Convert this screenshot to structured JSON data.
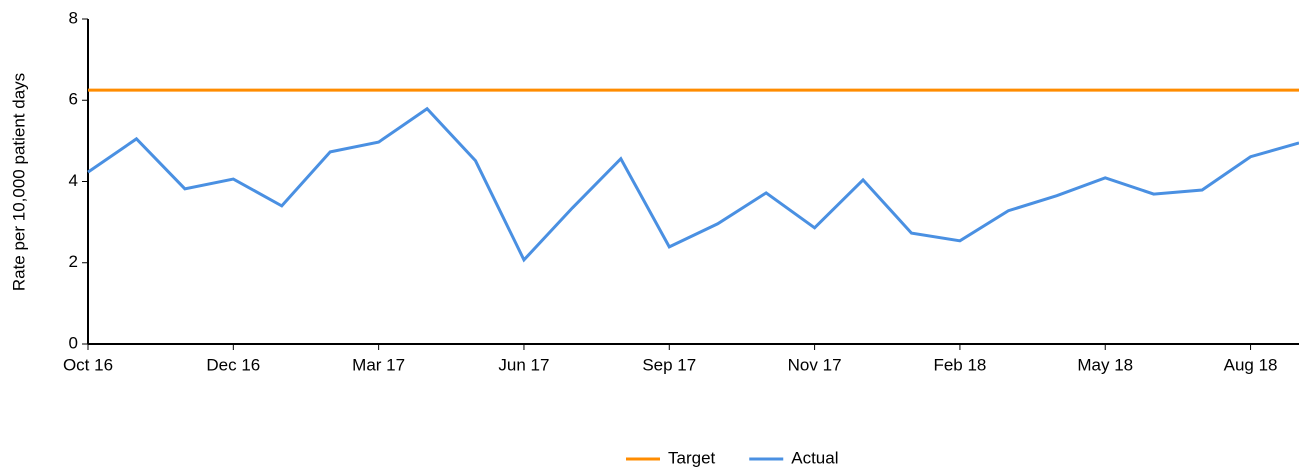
{
  "chart_data": {
    "type": "line",
    "ylabel": "Rate per 10,000 patient days",
    "categories": [
      "Oct 16",
      null,
      null,
      "Dec 16",
      null,
      null,
      "Mar 17",
      null,
      null,
      "Jun 17",
      null,
      null,
      "Sep 17",
      null,
      null,
      "Nov 17",
      null,
      null,
      "Feb 18",
      null,
      null,
      "May 18",
      null,
      null,
      "Aug 18",
      null
    ],
    "series": [
      {
        "name": "Target",
        "color": "#ff8c00",
        "values": [
          6.25,
          6.25,
          6.25,
          6.25,
          6.25,
          6.25,
          6.25,
          6.25,
          6.25,
          6.25,
          6.25,
          6.25,
          6.25,
          6.25,
          6.25,
          6.25,
          6.25,
          6.25,
          6.25,
          6.25,
          6.25,
          6.25,
          6.25,
          6.25,
          6.25,
          6.25
        ]
      },
      {
        "name": "Actual",
        "color": "#4a90e2",
        "values": [
          4.23,
          5.05,
          3.82,
          4.06,
          3.4,
          4.73,
          4.97,
          5.79,
          4.51,
          2.07,
          3.35,
          4.56,
          2.39,
          2.96,
          3.72,
          2.86,
          4.04,
          2.73,
          2.54,
          3.28,
          3.65,
          4.09,
          3.69,
          3.79,
          4.61,
          4.95
        ]
      }
    ],
    "ylim": [
      0,
      8
    ],
    "yticks": [
      0,
      2,
      4,
      6,
      8
    ],
    "legend": "bottom"
  }
}
